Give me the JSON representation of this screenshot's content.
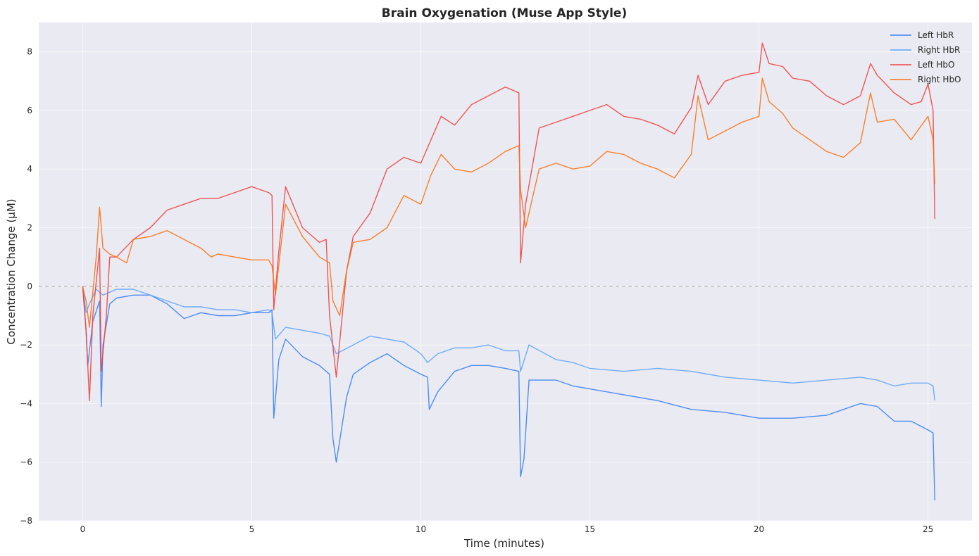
{
  "chart_data": {
    "type": "line",
    "title": "Brain Oxygenation (Muse App Style)",
    "xlabel": "Time (minutes)",
    "ylabel": "Concentration Change (µM)",
    "xlim": [
      -1.3,
      26.3
    ],
    "ylim": [
      -8,
      9
    ],
    "x_ticks": [
      0,
      5,
      10,
      15,
      20,
      25
    ],
    "y_ticks": [
      -8,
      -6,
      -4,
      -2,
      0,
      2,
      4,
      6,
      8
    ],
    "grid": true,
    "zero_reference_line": 0,
    "legend_position": "top-right",
    "series": [
      {
        "name": "Left HbR",
        "color": "#3b82f6",
        "points": [
          [
            0,
            0
          ],
          [
            0.1,
            -1.5
          ],
          [
            0.15,
            -2.7
          ],
          [
            0.3,
            -1.2
          ],
          [
            0.5,
            -0.5
          ],
          [
            0.55,
            -4.1
          ],
          [
            0.6,
            -2.0
          ],
          [
            0.8,
            -0.6
          ],
          [
            1.0,
            -0.4
          ],
          [
            1.5,
            -0.3
          ],
          [
            2.0,
            -0.3
          ],
          [
            2.5,
            -0.6
          ],
          [
            3.0,
            -1.1
          ],
          [
            3.5,
            -0.9
          ],
          [
            4.0,
            -1.0
          ],
          [
            4.5,
            -1.0
          ],
          [
            5.0,
            -0.9
          ],
          [
            5.5,
            -0.9
          ],
          [
            5.6,
            -0.8
          ],
          [
            5.65,
            -4.5
          ],
          [
            5.8,
            -2.5
          ],
          [
            6.0,
            -1.8
          ],
          [
            6.5,
            -2.4
          ],
          [
            7.0,
            -2.7
          ],
          [
            7.3,
            -3.0
          ],
          [
            7.4,
            -5.2
          ],
          [
            7.5,
            -6.0
          ],
          [
            7.8,
            -3.8
          ],
          [
            8.0,
            -3.0
          ],
          [
            8.5,
            -2.6
          ],
          [
            9.0,
            -2.3
          ],
          [
            9.5,
            -2.7
          ],
          [
            10.0,
            -3.0
          ],
          [
            10.2,
            -3.1
          ],
          [
            10.25,
            -4.2
          ],
          [
            10.5,
            -3.6
          ],
          [
            11.0,
            -2.9
          ],
          [
            11.5,
            -2.7
          ],
          [
            12.0,
            -2.7
          ],
          [
            12.5,
            -2.8
          ],
          [
            12.9,
            -2.9
          ],
          [
            12.95,
            -6.5
          ],
          [
            13.05,
            -5.9
          ],
          [
            13.2,
            -3.2
          ],
          [
            14.0,
            -3.2
          ],
          [
            14.5,
            -3.4
          ],
          [
            15.0,
            -3.5
          ],
          [
            16.0,
            -3.7
          ],
          [
            17.0,
            -3.9
          ],
          [
            18.0,
            -4.2
          ],
          [
            19.0,
            -4.3
          ],
          [
            20.0,
            -4.5
          ],
          [
            21.0,
            -4.5
          ],
          [
            22.0,
            -4.4
          ],
          [
            22.5,
            -4.2
          ],
          [
            23.0,
            -4.0
          ],
          [
            23.5,
            -4.1
          ],
          [
            24.0,
            -4.6
          ],
          [
            24.5,
            -4.6
          ],
          [
            25.0,
            -4.9
          ],
          [
            25.15,
            -5.0
          ],
          [
            25.2,
            -7.3
          ]
        ]
      },
      {
        "name": "Right HbR",
        "color": "#60a5fa",
        "points": [
          [
            0,
            0
          ],
          [
            0.1,
            -0.9
          ],
          [
            0.2,
            -0.6
          ],
          [
            0.4,
            -0.1
          ],
          [
            0.6,
            -0.3
          ],
          [
            0.8,
            -0.2
          ],
          [
            1.0,
            -0.1
          ],
          [
            1.5,
            -0.1
          ],
          [
            2.0,
            -0.3
          ],
          [
            2.5,
            -0.5
          ],
          [
            3.0,
            -0.7
          ],
          [
            3.5,
            -0.7
          ],
          [
            4.0,
            -0.8
          ],
          [
            4.5,
            -0.8
          ],
          [
            5.0,
            -0.9
          ],
          [
            5.5,
            -0.8
          ],
          [
            5.6,
            -0.9
          ],
          [
            5.7,
            -1.8
          ],
          [
            6.0,
            -1.4
          ],
          [
            6.5,
            -1.5
          ],
          [
            7.0,
            -1.6
          ],
          [
            7.3,
            -1.7
          ],
          [
            7.5,
            -2.3
          ],
          [
            8.0,
            -2.0
          ],
          [
            8.5,
            -1.7
          ],
          [
            9.0,
            -1.8
          ],
          [
            9.5,
            -1.9
          ],
          [
            10.0,
            -2.3
          ],
          [
            10.2,
            -2.6
          ],
          [
            10.5,
            -2.3
          ],
          [
            11.0,
            -2.1
          ],
          [
            11.5,
            -2.1
          ],
          [
            12.0,
            -2.0
          ],
          [
            12.5,
            -2.2
          ],
          [
            12.9,
            -2.2
          ],
          [
            12.95,
            -2.9
          ],
          [
            13.2,
            -2.0
          ],
          [
            14.0,
            -2.5
          ],
          [
            14.5,
            -2.6
          ],
          [
            15.0,
            -2.8
          ],
          [
            16.0,
            -2.9
          ],
          [
            17.0,
            -2.8
          ],
          [
            18.0,
            -2.9
          ],
          [
            19.0,
            -3.1
          ],
          [
            20.0,
            -3.2
          ],
          [
            21.0,
            -3.3
          ],
          [
            22.0,
            -3.2
          ],
          [
            23.0,
            -3.1
          ],
          [
            23.5,
            -3.2
          ],
          [
            24.0,
            -3.4
          ],
          [
            24.5,
            -3.3
          ],
          [
            25.0,
            -3.3
          ],
          [
            25.15,
            -3.4
          ],
          [
            25.2,
            -3.9
          ]
        ]
      },
      {
        "name": "Left HbO",
        "color": "#ef4444",
        "points": [
          [
            0,
            0
          ],
          [
            0.1,
            -1.5
          ],
          [
            0.2,
            -3.9
          ],
          [
            0.3,
            -1.0
          ],
          [
            0.5,
            1.3
          ],
          [
            0.55,
            -2.9
          ],
          [
            0.7,
            -1.0
          ],
          [
            0.8,
            1.0
          ],
          [
            1.0,
            1.0
          ],
          [
            1.5,
            1.6
          ],
          [
            2.0,
            2.0
          ],
          [
            2.5,
            2.6
          ],
          [
            3.0,
            2.8
          ],
          [
            3.5,
            3.0
          ],
          [
            4.0,
            3.0
          ],
          [
            4.5,
            3.2
          ],
          [
            5.0,
            3.4
          ],
          [
            5.5,
            3.2
          ],
          [
            5.6,
            3.1
          ],
          [
            5.65,
            -0.8
          ],
          [
            5.8,
            1.2
          ],
          [
            6.0,
            3.4
          ],
          [
            6.5,
            2.0
          ],
          [
            7.0,
            1.5
          ],
          [
            7.2,
            1.6
          ],
          [
            7.3,
            -1.0
          ],
          [
            7.5,
            -3.1
          ],
          [
            7.8,
            0.5
          ],
          [
            8.0,
            1.7
          ],
          [
            8.5,
            2.5
          ],
          [
            9.0,
            4.0
          ],
          [
            9.5,
            4.4
          ],
          [
            10.0,
            4.2
          ],
          [
            10.3,
            5.0
          ],
          [
            10.6,
            5.8
          ],
          [
            11.0,
            5.5
          ],
          [
            11.5,
            6.2
          ],
          [
            12.0,
            6.5
          ],
          [
            12.5,
            6.8
          ],
          [
            12.9,
            6.6
          ],
          [
            12.95,
            0.8
          ],
          [
            13.1,
            2.8
          ],
          [
            13.5,
            5.4
          ],
          [
            14.0,
            5.6
          ],
          [
            14.5,
            5.8
          ],
          [
            15.0,
            6.0
          ],
          [
            15.5,
            6.2
          ],
          [
            16.0,
            5.8
          ],
          [
            16.5,
            5.7
          ],
          [
            17.0,
            5.5
          ],
          [
            17.5,
            5.2
          ],
          [
            18.0,
            6.1
          ],
          [
            18.2,
            7.2
          ],
          [
            18.5,
            6.2
          ],
          [
            19.0,
            7.0
          ],
          [
            19.5,
            7.2
          ],
          [
            20.0,
            7.3
          ],
          [
            20.1,
            8.3
          ],
          [
            20.3,
            7.6
          ],
          [
            20.7,
            7.5
          ],
          [
            21.0,
            7.1
          ],
          [
            21.5,
            7.0
          ],
          [
            22.0,
            6.5
          ],
          [
            22.5,
            6.2
          ],
          [
            23.0,
            6.5
          ],
          [
            23.3,
            7.6
          ],
          [
            23.5,
            7.2
          ],
          [
            24.0,
            6.6
          ],
          [
            24.5,
            6.2
          ],
          [
            24.8,
            6.3
          ],
          [
            25.0,
            6.9
          ],
          [
            25.15,
            6.0
          ],
          [
            25.2,
            2.3
          ]
        ]
      },
      {
        "name": "Right HbO",
        "color": "#f97316",
        "points": [
          [
            0,
            0
          ],
          [
            0.1,
            -0.5
          ],
          [
            0.2,
            -1.4
          ],
          [
            0.4,
            1.0
          ],
          [
            0.5,
            2.7
          ],
          [
            0.6,
            1.3
          ],
          [
            0.8,
            1.1
          ],
          [
            1.0,
            1.0
          ],
          [
            1.3,
            0.8
          ],
          [
            1.5,
            1.6
          ],
          [
            2.0,
            1.7
          ],
          [
            2.5,
            1.9
          ],
          [
            3.0,
            1.6
          ],
          [
            3.5,
            1.3
          ],
          [
            3.8,
            1.0
          ],
          [
            4.0,
            1.1
          ],
          [
            4.5,
            1.0
          ],
          [
            5.0,
            0.9
          ],
          [
            5.5,
            0.9
          ],
          [
            5.6,
            0.7
          ],
          [
            5.7,
            -0.3
          ],
          [
            6.0,
            2.8
          ],
          [
            6.5,
            1.7
          ],
          [
            7.0,
            1.0
          ],
          [
            7.3,
            0.8
          ],
          [
            7.4,
            -0.5
          ],
          [
            7.6,
            -1.0
          ],
          [
            7.8,
            0.5
          ],
          [
            8.0,
            1.5
          ],
          [
            8.5,
            1.6
          ],
          [
            9.0,
            2.0
          ],
          [
            9.5,
            3.1
          ],
          [
            10.0,
            2.8
          ],
          [
            10.3,
            3.8
          ],
          [
            10.6,
            4.5
          ],
          [
            11.0,
            4.0
          ],
          [
            11.5,
            3.9
          ],
          [
            12.0,
            4.2
          ],
          [
            12.5,
            4.6
          ],
          [
            12.9,
            4.8
          ],
          [
            12.95,
            3.3
          ],
          [
            13.1,
            2.0
          ],
          [
            13.5,
            4.0
          ],
          [
            14.0,
            4.2
          ],
          [
            14.5,
            4.0
          ],
          [
            15.0,
            4.1
          ],
          [
            15.5,
            4.6
          ],
          [
            16.0,
            4.5
          ],
          [
            16.5,
            4.2
          ],
          [
            17.0,
            4.0
          ],
          [
            17.5,
            3.7
          ],
          [
            18.0,
            4.5
          ],
          [
            18.2,
            6.5
          ],
          [
            18.5,
            5.0
          ],
          [
            19.0,
            5.3
          ],
          [
            19.5,
            5.6
          ],
          [
            20.0,
            5.8
          ],
          [
            20.1,
            7.1
          ],
          [
            20.3,
            6.3
          ],
          [
            20.7,
            5.9
          ],
          [
            21.0,
            5.4
          ],
          [
            21.5,
            5.0
          ],
          [
            22.0,
            4.6
          ],
          [
            22.5,
            4.4
          ],
          [
            23.0,
            4.9
          ],
          [
            23.3,
            6.6
          ],
          [
            23.5,
            5.6
          ],
          [
            24.0,
            5.7
          ],
          [
            24.5,
            5.0
          ],
          [
            25.0,
            5.8
          ],
          [
            25.15,
            5.0
          ],
          [
            25.2,
            3.5
          ]
        ]
      }
    ]
  }
}
